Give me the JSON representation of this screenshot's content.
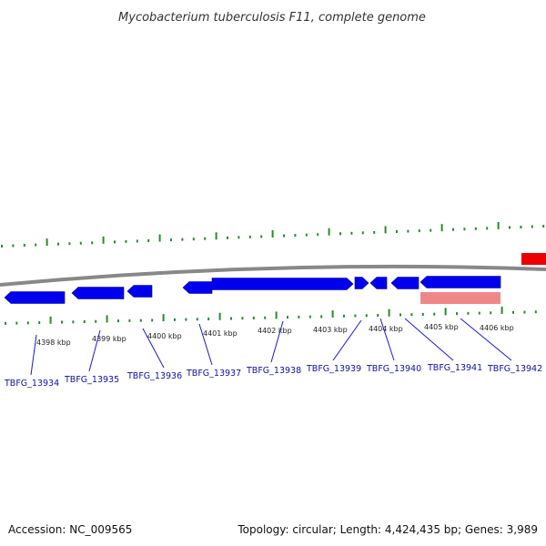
{
  "title": "Mycobacterium tuberculosis F11, complete genome",
  "accession_text": "Accession: NC_009565",
  "topology_text": "Topology: circular; Length: 4,424,435 bp; Genes: 3,989",
  "colors": {
    "forward_gene": "#0000ee",
    "feature_red": "#ee0000",
    "feature_pink": "#ee8888",
    "backbone": "#888888",
    "ticks": "#2a8a2a",
    "label_line": "#1a1acc"
  },
  "scale_ticks": [
    {
      "label": "4398 kbp"
    },
    {
      "label": "4399 kbp"
    },
    {
      "label": "4400 kbp"
    },
    {
      "label": "4401 kbp"
    },
    {
      "label": "4402 kbp"
    },
    {
      "label": "4403 kbp"
    },
    {
      "label": "4404 kbp"
    },
    {
      "label": "4405 kbp"
    },
    {
      "label": "4406 kbp"
    }
  ],
  "gene_labels": [
    "TBFG_13934",
    "TBFG_13935",
    "TBFG_13936",
    "TBFG_13937",
    "TBFG_13938",
    "TBFG_13939",
    "TBFG_13940",
    "TBFG_13941",
    "TBFG_13942"
  ]
}
